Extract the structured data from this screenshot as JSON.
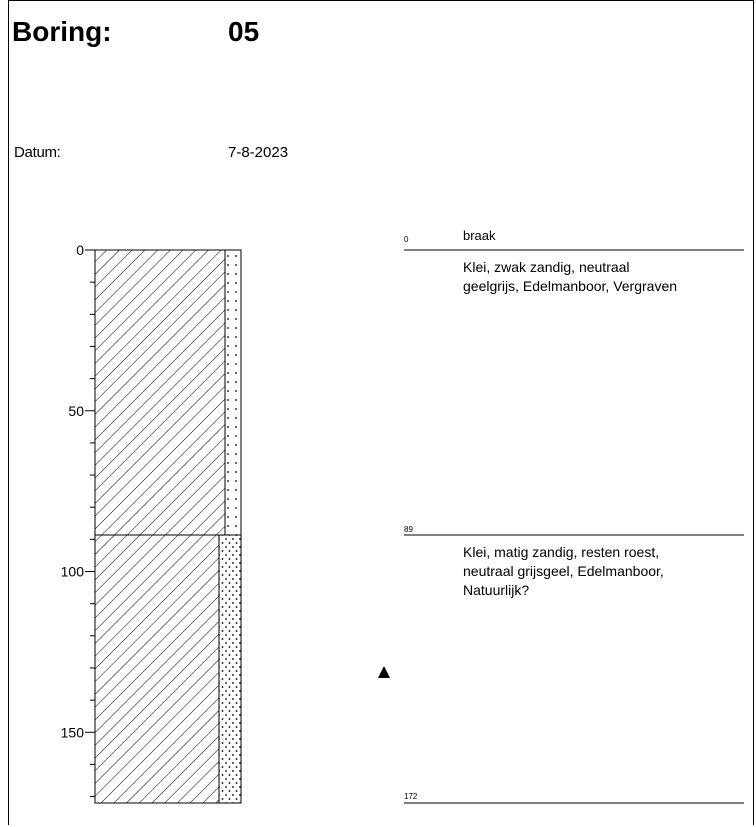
{
  "header": {
    "boring_label": "Boring:",
    "boring_value": "05",
    "datum_label": "Datum:",
    "datum_value": "7-8-2023"
  },
  "log": {
    "depth_axis": {
      "ticks": [
        "0",
        "50",
        "100",
        "150"
      ],
      "max_depth": 172
    },
    "surface_label": "braak",
    "layers": [
      {
        "top_label": "0",
        "top": 0,
        "bottom": 89,
        "description": [
          "Klei, zwak zandig, neutraal",
          "geelgrijs, Edelmanboor, Vergraven"
        ]
      },
      {
        "top_label": "89",
        "top": 89,
        "bottom": 172,
        "description": [
          "Klei, matig zandig, resten roest,",
          "neutraal grijsgeel, Edelmanboor,",
          "Natuurlijk?"
        ]
      }
    ],
    "end_label": "172",
    "groundwater_marker_icon": "triangle-up-icon",
    "groundwater_depth": 135
  }
}
